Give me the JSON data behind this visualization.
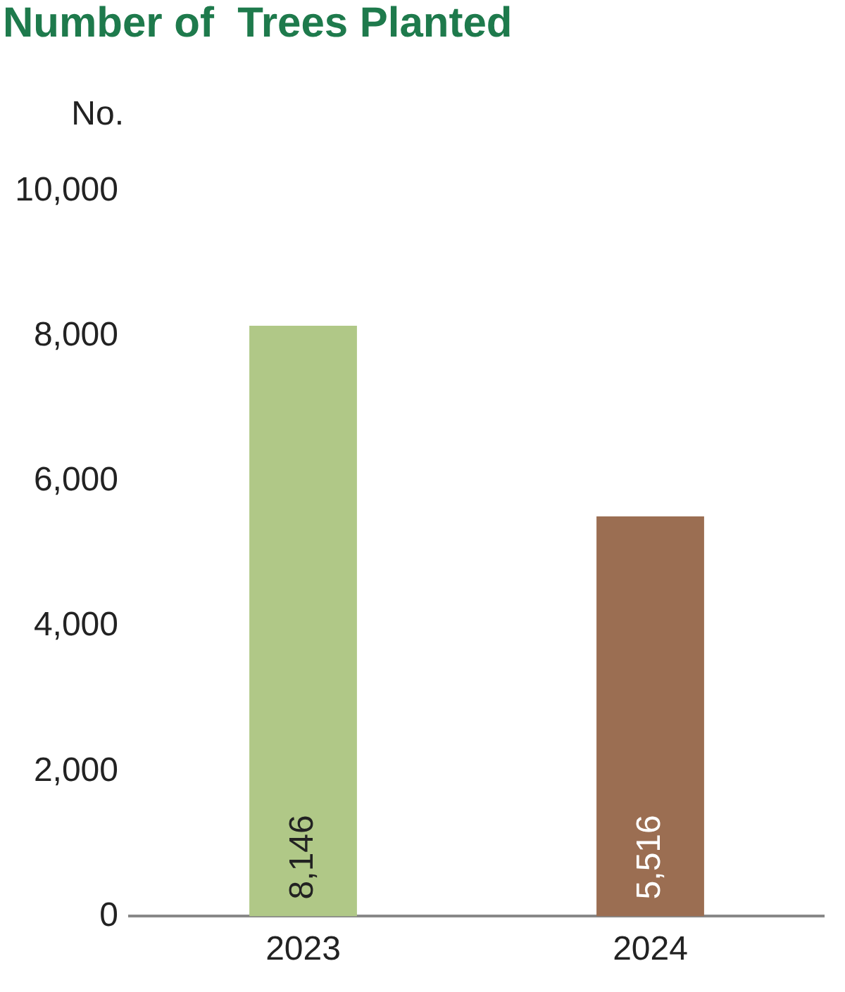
{
  "chart_data": {
    "type": "bar",
    "title": "Number of  Trees Planted",
    "ylabel": "No.",
    "categories": [
      "2023",
      "2024"
    ],
    "values": [
      8146,
      5516
    ],
    "colors": [
      "#b0c887",
      "#9b6e52"
    ],
    "ylim": [
      0,
      10000
    ],
    "yticks": [
      0,
      {
        "value": 2000,
        "label": "2,000"
      },
      {
        "value": 4000,
        "label": "4,000"
      },
      {
        "value": 6000,
        "label": "6,000"
      },
      {
        "value": 8000,
        "label": "8,000"
      },
      {
        "value": 10000,
        "label": "10,000"
      }
    ],
    "value_labels": [
      "8,146",
      "5,516"
    ],
    "grid": false,
    "legend": false
  }
}
